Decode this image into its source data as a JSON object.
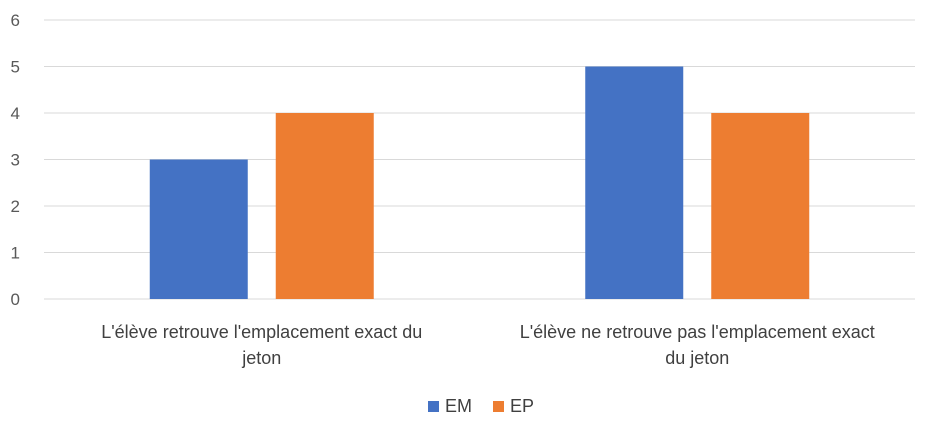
{
  "chart_data": {
    "type": "bar",
    "title": "",
    "xlabel": "",
    "ylabel": "",
    "ylim": [
      0,
      6
    ],
    "yticks": [
      0,
      1,
      2,
      3,
      4,
      5,
      6
    ],
    "grid": true,
    "legend_position": "bottom",
    "categories": [
      [
        "L'élève retrouve l'emplacement exact du",
        "jeton"
      ],
      [
        "L'élève ne retrouve pas l'emplacement exact",
        "du jeton"
      ]
    ],
    "series": [
      {
        "name": "EM",
        "color": "#4472C4",
        "values": [
          3,
          5
        ]
      },
      {
        "name": "EP",
        "color": "#ED7D31",
        "values": [
          4,
          4
        ]
      }
    ]
  }
}
